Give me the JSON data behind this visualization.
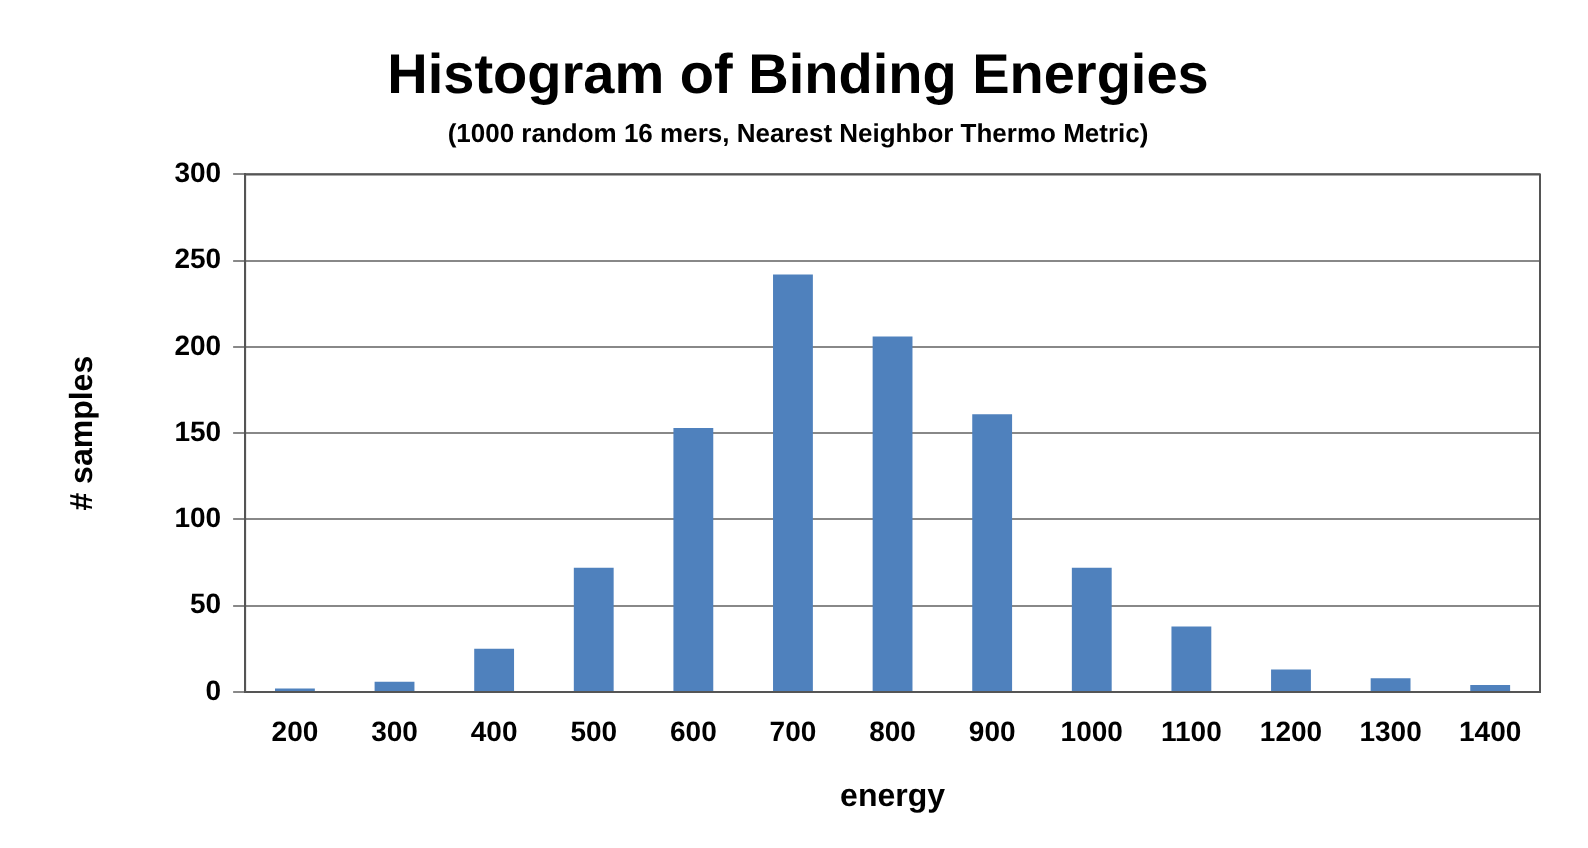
{
  "chart_data": {
    "type": "bar",
    "title": "Histogram of Binding Energies",
    "subtitle": "(1000 random 16 mers, Nearest Neighbor Thermo Metric)",
    "xlabel": "energy",
    "ylabel": "# samples",
    "categories": [
      "200",
      "300",
      "400",
      "500",
      "600",
      "700",
      "800",
      "900",
      "1000",
      "1100",
      "1200",
      "1300",
      "1400"
    ],
    "values": [
      2,
      6,
      25,
      72,
      153,
      242,
      206,
      161,
      72,
      38,
      13,
      8,
      4
    ],
    "color": "#4f81bd",
    "ylim": [
      0,
      300
    ],
    "yticks": [
      0,
      50,
      100,
      150,
      200,
      250,
      300
    ],
    "grid": "y",
    "legend": false
  }
}
